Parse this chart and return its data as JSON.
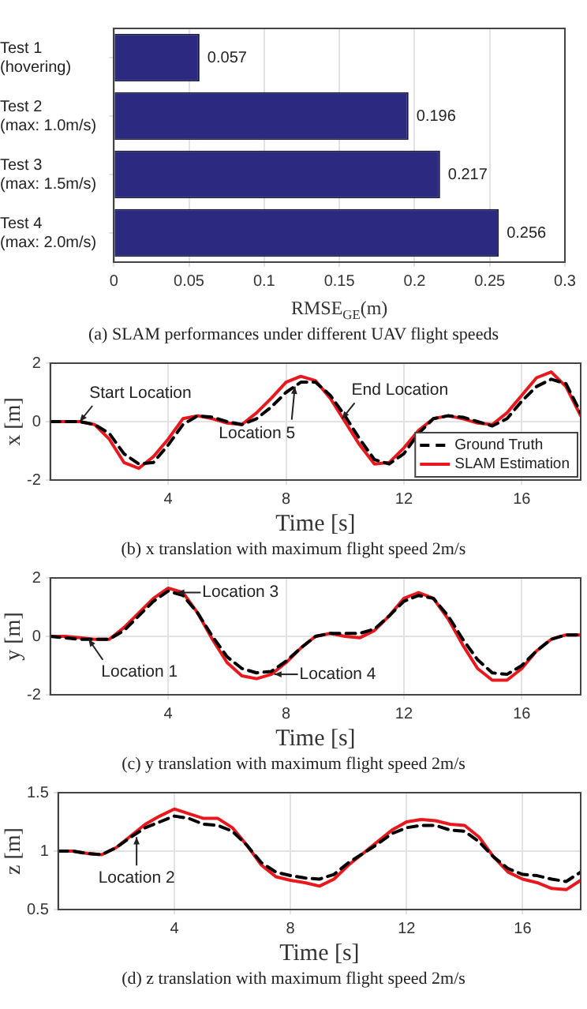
{
  "chart_data": [
    {
      "type": "bar",
      "orientation": "horizontal",
      "categories": [
        "Test 1\n(hovering)",
        "Test 2\n(max: 1.0m/s)",
        "Test 3\n(max: 1.5m/s)",
        "Test 4\n(max: 2.0m/s)"
      ],
      "values": [
        0.057,
        0.196,
        0.217,
        0.256
      ],
      "color": "#2b2a80",
      "xlim": [
        0,
        0.3
      ],
      "xticks": [
        0,
        0.05,
        0.1,
        0.15,
        0.2,
        0.25,
        0.3
      ],
      "xlabel": "RMSE$_{GE}$(m)",
      "data_labels": true,
      "grid": "x",
      "legend": false,
      "annotations": [
        "(a) SLAM performances under different UAV flight speeds"
      ]
    },
    {
      "type": "line",
      "x": [
        0,
        0.5,
        1,
        1.5,
        2,
        2.5,
        3,
        3.5,
        4,
        4.5,
        5,
        5.5,
        6,
        6.5,
        7,
        7.5,
        8,
        8.5,
        9,
        9.5,
        10,
        10.5,
        11,
        11.5,
        12,
        12.5,
        13,
        13.5,
        14,
        14.5,
        15,
        15.5,
        16,
        16.5,
        17,
        17.5,
        18
      ],
      "xlim": [
        0,
        18
      ],
      "xticks": [
        4,
        8,
        12,
        16
      ],
      "ylim": [
        -2,
        2
      ],
      "yticks": [
        -2,
        0,
        2
      ],
      "xlabel": "Time [s]",
      "ylabel": "x [m]",
      "grid": true,
      "legend": "bottom right",
      "series": [
        {
          "name": "Ground Truth",
          "color": "#000000",
          "line_style": "dashed",
          "values": [
            0,
            0,
            0,
            -0.1,
            -0.4,
            -1.1,
            -1.45,
            -1.4,
            -0.8,
            -0.1,
            0.2,
            0.15,
            0,
            -0.1,
            0.1,
            0.5,
            1.0,
            1.35,
            1.35,
            0.9,
            0.2,
            -0.6,
            -1.3,
            -1.45,
            -1.1,
            -0.4,
            0.1,
            0.2,
            0.15,
            0,
            -0.15,
            0.1,
            0.7,
            1.2,
            1.45,
            1.3,
            0.3
          ]
        },
        {
          "name": "SLAM Estimation",
          "color": "#e8191e",
          "line_style": "solid",
          "values": [
            0,
            0,
            0,
            -0.1,
            -0.6,
            -1.4,
            -1.6,
            -1.2,
            -0.6,
            0.1,
            0.2,
            0.1,
            -0.05,
            -0.1,
            0.3,
            0.8,
            1.35,
            1.55,
            1.4,
            0.8,
            0,
            -0.8,
            -1.45,
            -1.4,
            -0.9,
            -0.3,
            0.1,
            0.2,
            0.1,
            -0.05,
            -0.1,
            0.3,
            0.9,
            1.5,
            1.7,
            1.2,
            0.2
          ]
        }
      ],
      "annotations": [
        {
          "text": "Start Location",
          "x": 1,
          "y": 0
        },
        {
          "text": "Location 5",
          "x": 8.3,
          "y": 1.2
        },
        {
          "text": "End Location",
          "x": 9.9,
          "y": 0.1
        },
        "(b) x translation with maximum flight speed 2m/s"
      ]
    },
    {
      "type": "line",
      "x": [
        0,
        0.5,
        1,
        1.5,
        2,
        2.5,
        3,
        3.5,
        4,
        4.5,
        5,
        5.5,
        6,
        6.5,
        7,
        7.5,
        8,
        8.5,
        9,
        9.5,
        10,
        10.5,
        11,
        11.5,
        12,
        12.5,
        13,
        13.5,
        14,
        14.5,
        15,
        15.5,
        16,
        16.5,
        17,
        17.5,
        18
      ],
      "xlim": [
        0,
        18
      ],
      "xticks": [
        4,
        8,
        12,
        16
      ],
      "ylim": [
        -2,
        2
      ],
      "yticks": [
        -2,
        0,
        2
      ],
      "xlabel": "Time [s]",
      "ylabel": "y [m]",
      "grid": true,
      "series": [
        {
          "color": "#000000",
          "line_style": "dashed",
          "values": [
            0,
            -0.05,
            -0.1,
            -0.1,
            -0.1,
            0.2,
            0.7,
            1.2,
            1.55,
            1.4,
            0.8,
            0,
            -0.7,
            -1.1,
            -1.25,
            -1.2,
            -0.85,
            -0.4,
            0,
            0.1,
            0.1,
            0.1,
            0.25,
            0.7,
            1.2,
            1.4,
            1.3,
            0.7,
            -0.1,
            -0.8,
            -1.25,
            -1.3,
            -1.0,
            -0.5,
            -0.1,
            0.05,
            0.05
          ]
        },
        {
          "color": "#e8191e",
          "line_style": "solid",
          "values": [
            0,
            0,
            -0.05,
            -0.1,
            -0.1,
            0.3,
            0.8,
            1.3,
            1.65,
            1.5,
            0.8,
            -0.1,
            -0.9,
            -1.35,
            -1.45,
            -1.3,
            -0.9,
            -0.4,
            0,
            0.1,
            0,
            -0.05,
            0.2,
            0.7,
            1.3,
            1.5,
            1.3,
            0.6,
            -0.3,
            -1.1,
            -1.5,
            -1.5,
            -1.1,
            -0.5,
            -0.1,
            0.05,
            0.05
          ]
        }
      ],
      "annotations": [
        {
          "text": "Location 3",
          "x": 4.3,
          "y": 1.5
        },
        {
          "text": "Location 1",
          "x": 1.3,
          "y": -0.1
        },
        {
          "text": "Location 4",
          "x": 7.6,
          "y": -1.3
        },
        "(c) y translation with maximum flight speed 2m/s"
      ]
    },
    {
      "type": "line",
      "x": [
        0,
        0.5,
        1,
        1.5,
        2,
        2.5,
        3,
        3.5,
        4,
        4.5,
        5,
        5.5,
        6,
        6.5,
        7,
        7.5,
        8,
        8.5,
        9,
        9.5,
        10,
        10.5,
        11,
        11.5,
        12,
        12.5,
        13,
        13.5,
        14,
        14.5,
        15,
        15.5,
        16,
        16.5,
        17,
        17.5,
        18
      ],
      "xlim": [
        0,
        18
      ],
      "xticks": [
        4,
        8,
        12,
        16
      ],
      "ylim": [
        0.5,
        1.5
      ],
      "yticks": [
        0.5,
        1,
        1.5
      ],
      "xlabel": "Time [s]",
      "ylabel": "z [m]",
      "grid": true,
      "series": [
        {
          "color": "#000000",
          "line_style": "dashed",
          "values": [
            1.0,
            1.0,
            0.98,
            0.97,
            1.03,
            1.12,
            1.2,
            1.25,
            1.3,
            1.28,
            1.23,
            1.22,
            1.17,
            1.05,
            0.9,
            0.82,
            0.79,
            0.77,
            0.76,
            0.8,
            0.9,
            0.98,
            1.06,
            1.15,
            1.2,
            1.22,
            1.22,
            1.18,
            1.17,
            1.08,
            0.95,
            0.85,
            0.8,
            0.79,
            0.76,
            0.74,
            0.82
          ]
        },
        {
          "color": "#e8191e",
          "line_style": "solid",
          "values": [
            1.0,
            1.0,
            0.98,
            0.97,
            1.03,
            1.13,
            1.23,
            1.3,
            1.36,
            1.32,
            1.28,
            1.28,
            1.2,
            1.05,
            0.88,
            0.78,
            0.75,
            0.73,
            0.7,
            0.76,
            0.88,
            0.98,
            1.08,
            1.18,
            1.25,
            1.27,
            1.26,
            1.23,
            1.22,
            1.12,
            0.95,
            0.82,
            0.76,
            0.73,
            0.68,
            0.67,
            0.75
          ]
        }
      ],
      "annotations": [
        {
          "text": "Location 2",
          "x": 2.7,
          "y": 1.12
        },
        "(d) z translation with maximum flight speed 2m/s"
      ]
    }
  ]
}
